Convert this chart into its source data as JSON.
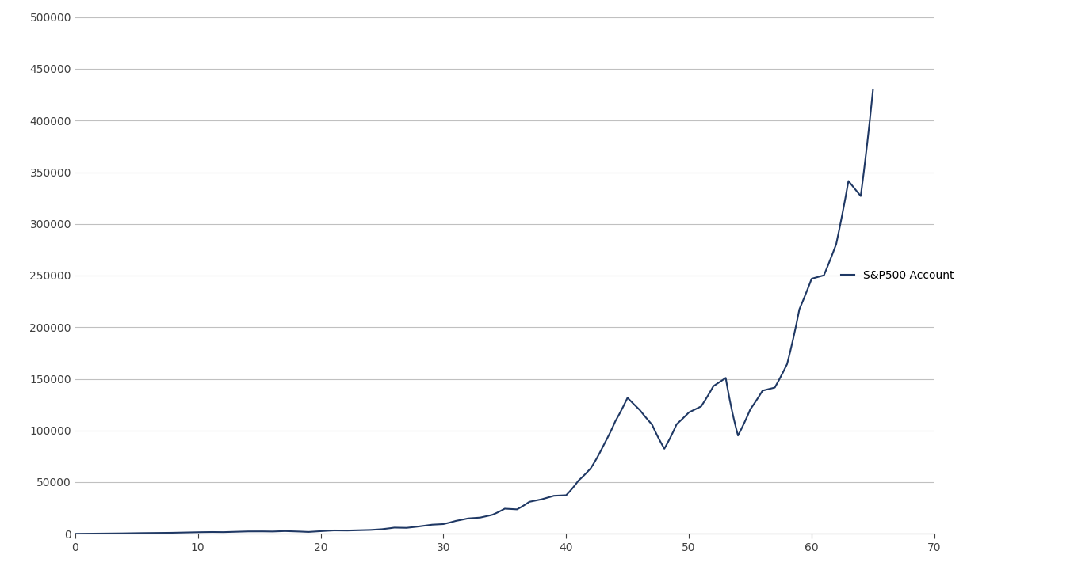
{
  "line_color": "#1F3864",
  "legend_label": "S&P500 Account",
  "background_color": "#ffffff",
  "grid_color": "#c0c0c0",
  "xlim": [
    0,
    70
  ],
  "ylim": [
    0,
    500000
  ],
  "xticks": [
    0,
    10,
    20,
    30,
    40,
    50,
    60,
    70
  ],
  "yticks": [
    0,
    50000,
    100000,
    150000,
    200000,
    250000,
    300000,
    350000,
    400000,
    450000,
    500000
  ],
  "line_width": 1.5,
  "sp500_annual_returns": [
    0.315,
    0.068,
    -0.089,
    0.43,
    0.267,
    0.006,
    -0.085,
    0.228,
    0.164,
    0.127,
    0.09,
    -0.133,
    0.204,
    0.11,
    0.006,
    -0.122,
    0.187,
    -0.145,
    -0.265,
    0.372,
    0.237,
    -0.074,
    0.067,
    0.064,
    0.184,
    0.321,
    -0.049,
    0.215,
    0.224,
    0.062,
    0.316,
    0.187,
    0.052,
    0.165,
    0.315,
    -0.031,
    0.304,
    0.076,
    0.1,
    0.013,
    0.374,
    0.23,
    0.333,
    0.285,
    0.21,
    -0.091,
    -0.119,
    -0.221,
    0.286,
    0.108,
    0.049,
    0.158,
    0.055,
    -0.37,
    0.265,
    0.15,
    0.021,
    0.16,
    0.322,
    0.136,
    0.013,
    0.12,
    0.218,
    -0.043,
    0.315
  ],
  "yearly_contribution": 1000
}
